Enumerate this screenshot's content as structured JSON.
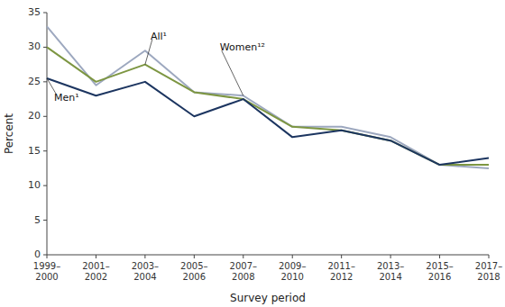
{
  "chart_data": {
    "type": "line",
    "categories": [
      "1999–2000",
      "2001–2002",
      "2003–2004",
      "2005–2006",
      "2007–2008",
      "2009–2010",
      "2011–2012",
      "2013–2014",
      "2015–2016",
      "2017–2018"
    ],
    "series": [
      {
        "name": "Women¹²",
        "color": "#9da8bf",
        "values": [
          33.0,
          24.5,
          29.5,
          23.5,
          23.0,
          18.5,
          18.5,
          17.0,
          13.0,
          12.5
        ]
      },
      {
        "name": "All¹",
        "color": "#7d9642",
        "values": [
          30.0,
          25.0,
          27.5,
          23.5,
          22.5,
          18.5,
          18.0,
          16.5,
          13.0,
          13.0
        ]
      },
      {
        "name": "Men¹",
        "color": "#1c3560",
        "values": [
          25.5,
          23.0,
          25.0,
          20.0,
          22.5,
          17.0,
          18.0,
          16.5,
          13.0,
          14.0
        ]
      }
    ],
    "xlabel": "Survey period",
    "ylabel": "Percent",
    "ylim": [
      0,
      35
    ],
    "yticks": [
      0,
      5,
      10,
      15,
      20,
      25,
      30,
      35
    ],
    "grid": false
  }
}
